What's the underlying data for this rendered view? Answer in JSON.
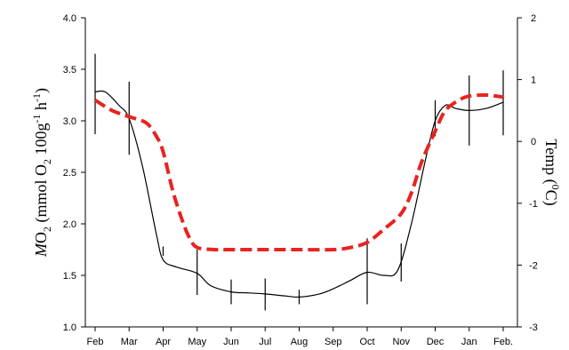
{
  "chart_data": {
    "type": "line",
    "categories": [
      "Feb",
      "Mar",
      "Apr",
      "May",
      "Jun",
      "Jul",
      "Aug",
      "Sep",
      "Oct",
      "Nov",
      "Dec",
      "Jan",
      "Feb."
    ],
    "left_axis": {
      "label_prefix": "M",
      "label_main": "O",
      "label_sub": "2",
      "label_units_a": "(mmol O",
      "label_units_sub": "2",
      "label_units_b": " 100g",
      "label_units_sup": "-1",
      "label_units_c": " h",
      "label_units_sup2": "-1",
      "label_units_d": ")",
      "ylim": [
        1.0,
        4.0
      ],
      "ticks": [
        "1.0",
        "1.5",
        "2.0",
        "2.5",
        "3.0",
        "3.5",
        "4.0"
      ]
    },
    "right_axis": {
      "label_a": "Temp (",
      "label_sup": "0",
      "label_b": "C)",
      "ylim": [
        -3,
        2
      ],
      "ticks": [
        "-3",
        "-2",
        "-1",
        "0",
        "1",
        "2"
      ]
    },
    "series": [
      {
        "axis": "left",
        "style": "solid-thin-black",
        "color": "#000000",
        "points": [
          [
            0,
            3.28
          ],
          [
            0.3,
            3.28
          ],
          [
            0.7,
            3.15
          ],
          [
            1,
            3.02
          ],
          [
            1.4,
            2.55
          ],
          [
            1.8,
            1.9
          ],
          [
            2,
            1.65
          ],
          [
            2.4,
            1.58
          ],
          [
            3,
            1.52
          ],
          [
            3.4,
            1.4
          ],
          [
            4,
            1.34
          ],
          [
            4.5,
            1.33
          ],
          [
            5,
            1.32
          ],
          [
            5.6,
            1.3
          ],
          [
            6,
            1.29
          ],
          [
            6.6,
            1.32
          ],
          [
            7,
            1.37
          ],
          [
            7.5,
            1.45
          ],
          [
            8,
            1.53
          ],
          [
            8.5,
            1.5
          ],
          [
            8.9,
            1.55
          ],
          [
            9.3,
            2.0
          ],
          [
            9.7,
            2.6
          ],
          [
            10,
            3.0
          ],
          [
            10.3,
            3.15
          ],
          [
            10.6,
            3.12
          ],
          [
            11,
            3.1
          ],
          [
            11.5,
            3.12
          ],
          [
            12,
            3.18
          ]
        ],
        "error_bars": [
          {
            "x": 0,
            "low": 2.87,
            "high": 3.65
          },
          {
            "x": 1,
            "low": 2.67,
            "high": 3.38
          },
          {
            "x": 2,
            "low": 1.69,
            "high": 1.78
          },
          {
            "x": 3,
            "low": 1.31,
            "high": 1.75
          },
          {
            "x": 4,
            "low": 1.22,
            "high": 1.46
          },
          {
            "x": 5,
            "low": 1.16,
            "high": 1.47
          },
          {
            "x": 6,
            "low": 1.22,
            "high": 1.36
          },
          {
            "x": 8,
            "low": 1.22,
            "high": 1.86
          },
          {
            "x": 9,
            "low": 1.44,
            "high": 1.81
          },
          {
            "x": 10,
            "low": 2.85,
            "high": 3.2
          },
          {
            "x": 11,
            "low": 2.76,
            "high": 3.44
          },
          {
            "x": 12,
            "low": 2.86,
            "high": 3.49
          }
        ]
      },
      {
        "axis": "left",
        "style": "dashed-thick-red",
        "color": "#e8231f",
        "points": [
          [
            0,
            3.2
          ],
          [
            0.5,
            3.1
          ],
          [
            1,
            3.04
          ],
          [
            1.5,
            2.98
          ],
          [
            1.8,
            2.85
          ],
          [
            2,
            2.7
          ],
          [
            2.3,
            2.3
          ],
          [
            2.6,
            2.0
          ],
          [
            2.8,
            1.85
          ],
          [
            3,
            1.77
          ],
          [
            3.5,
            1.75
          ],
          [
            4,
            1.75
          ],
          [
            5,
            1.75
          ],
          [
            6,
            1.75
          ],
          [
            7,
            1.75
          ],
          [
            7.5,
            1.77
          ],
          [
            8,
            1.82
          ],
          [
            8.5,
            1.95
          ],
          [
            9,
            2.1
          ],
          [
            9.3,
            2.3
          ],
          [
            9.6,
            2.6
          ],
          [
            10,
            2.9
          ],
          [
            10.3,
            3.1
          ],
          [
            10.7,
            3.2
          ],
          [
            11,
            3.24
          ],
          [
            11.5,
            3.25
          ],
          [
            12,
            3.23
          ]
        ]
      }
    ],
    "grid": false,
    "legend": "none"
  }
}
